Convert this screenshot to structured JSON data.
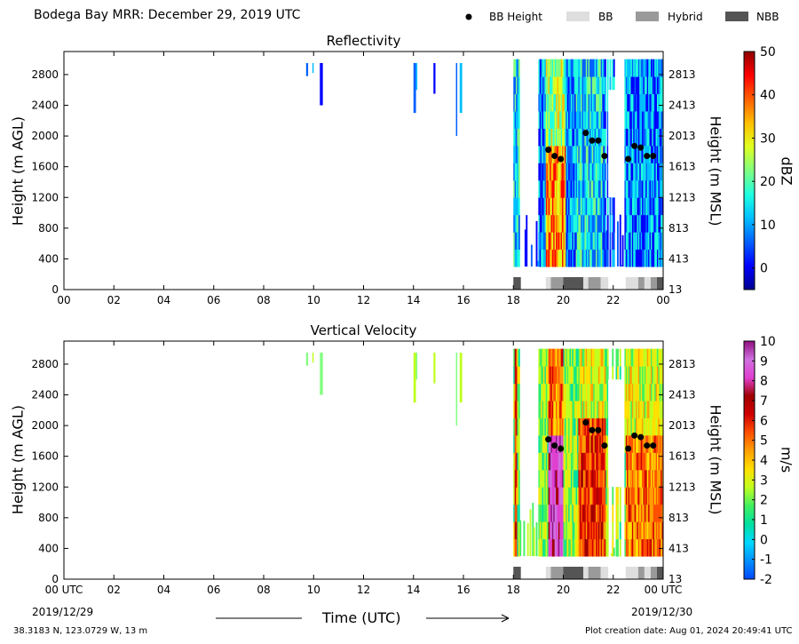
{
  "header": {
    "title": "Bodega Bay MRR:  December 29, 2019 UTC",
    "legend": [
      {
        "label": "BB Height",
        "color": "#000000",
        "kind": "dot"
      },
      {
        "label": "BB",
        "color": "#dedede",
        "kind": "box"
      },
      {
        "label": "Hybrid",
        "color": "#9a9a9a",
        "kind": "box"
      },
      {
        "label": "NBB",
        "color": "#555555",
        "kind": "box"
      }
    ]
  },
  "footer": {
    "location": "38.3183 N, 123.0729 W, 13 m",
    "creation": "Plot creation date: Aug 01, 2024 20:49:41 UTC",
    "xlabel": "Time (UTC)",
    "start_date": "2019/12/29",
    "end_date": "2019/12/30"
  },
  "chart_data": [
    {
      "type": "heatmap",
      "title": "Reflectivity",
      "ylabel": "Height (m AGL)",
      "ylabel_right": "Height (m MSL)",
      "colorbar_label": "dBZ",
      "colorbar_ticks": [
        "0",
        "10",
        "20",
        "30",
        "40",
        "50"
      ],
      "colorbar_range": [
        -5,
        50
      ],
      "x_ticks": [
        "00",
        "02",
        "04",
        "06",
        "08",
        "10",
        "12",
        "14",
        "16",
        "18",
        "20",
        "22",
        "00"
      ],
      "y_ticks": [
        "0",
        "400",
        "800",
        "1200",
        "1600",
        "2000",
        "2400",
        "2800"
      ],
      "y_ticks_right": [
        "13",
        "413",
        "813",
        "1213",
        "1613",
        "2013",
        "2413",
        "2813"
      ],
      "xlim": [
        0,
        24
      ],
      "ylim": [
        0,
        3100
      ],
      "bb_height": [
        {
          "x": 19.4,
          "y": 1820
        },
        {
          "x": 19.65,
          "y": 1740
        },
        {
          "x": 19.9,
          "y": 1700
        },
        {
          "x": 20.9,
          "y": 2040
        },
        {
          "x": 21.15,
          "y": 1940
        },
        {
          "x": 21.4,
          "y": 1940
        },
        {
          "x": 21.65,
          "y": 1740
        },
        {
          "x": 22.6,
          "y": 1700
        },
        {
          "x": 22.85,
          "y": 1870
        },
        {
          "x": 23.1,
          "y": 1850
        },
        {
          "x": 23.35,
          "y": 1740
        },
        {
          "x": 23.6,
          "y": 1740
        }
      ],
      "bb_type": [
        {
          "x0": 18.0,
          "x1": 18.3,
          "kind": "NBB"
        },
        {
          "x0": 19.3,
          "x1": 19.5,
          "kind": "BB"
        },
        {
          "x0": 19.5,
          "x1": 20.0,
          "kind": "Hybrid"
        },
        {
          "x0": 20.0,
          "x1": 20.8,
          "kind": "NBB"
        },
        {
          "x0": 20.8,
          "x1": 21.0,
          "kind": "BB"
        },
        {
          "x0": 21.0,
          "x1": 21.5,
          "kind": "Hybrid"
        },
        {
          "x0": 21.5,
          "x1": 21.8,
          "kind": "BB"
        },
        {
          "x0": 22.5,
          "x1": 23.0,
          "kind": "BB"
        },
        {
          "x0": 23.0,
          "x1": 23.25,
          "kind": "Hybrid"
        },
        {
          "x0": 23.25,
          "x1": 23.5,
          "kind": "BB"
        },
        {
          "x0": 23.5,
          "x1": 23.75,
          "kind": "Hybrid"
        },
        {
          "x0": 23.75,
          "x1": 24.0,
          "kind": "NBB"
        }
      ]
    },
    {
      "type": "heatmap",
      "title": "Vertical Velocity",
      "ylabel": "Height (m AGL)",
      "ylabel_right": "Height (m MSL)",
      "colorbar_label": "m/s",
      "colorbar_ticks": [
        "-2",
        "-1",
        "0",
        "1",
        "2",
        "3",
        "4",
        "5",
        "6",
        "7",
        "8",
        "9",
        "10"
      ],
      "colorbar_range": [
        -2,
        10
      ],
      "x_ticks": [
        "00 UTC",
        "02",
        "04",
        "06",
        "08",
        "10",
        "12",
        "14",
        "16",
        "18",
        "20",
        "22",
        "00 UTC"
      ],
      "y_ticks": [
        "0",
        "400",
        "800",
        "1200",
        "1600",
        "2000",
        "2400",
        "2800"
      ],
      "y_ticks_right": [
        "13",
        "413",
        "813",
        "1213",
        "1613",
        "2013",
        "2413",
        "2813"
      ],
      "xlim": [
        0,
        24
      ],
      "ylim": [
        0,
        3100
      ],
      "bb_height": [
        {
          "x": 19.4,
          "y": 1820
        },
        {
          "x": 19.65,
          "y": 1740
        },
        {
          "x": 19.9,
          "y": 1700
        },
        {
          "x": 20.9,
          "y": 2040
        },
        {
          "x": 21.15,
          "y": 1940
        },
        {
          "x": 21.4,
          "y": 1940
        },
        {
          "x": 21.65,
          "y": 1740
        },
        {
          "x": 22.6,
          "y": 1700
        },
        {
          "x": 22.85,
          "y": 1870
        },
        {
          "x": 23.1,
          "y": 1850
        },
        {
          "x": 23.35,
          "y": 1740
        },
        {
          "x": 23.6,
          "y": 1740
        }
      ],
      "bb_type": [
        {
          "x0": 18.0,
          "x1": 18.3,
          "kind": "NBB"
        },
        {
          "x0": 19.3,
          "x1": 19.5,
          "kind": "BB"
        },
        {
          "x0": 19.5,
          "x1": 20.0,
          "kind": "Hybrid"
        },
        {
          "x0": 20.0,
          "x1": 20.8,
          "kind": "NBB"
        },
        {
          "x0": 20.8,
          "x1": 21.0,
          "kind": "BB"
        },
        {
          "x0": 21.0,
          "x1": 21.5,
          "kind": "Hybrid"
        },
        {
          "x0": 21.5,
          "x1": 21.8,
          "kind": "BB"
        },
        {
          "x0": 22.5,
          "x1": 23.0,
          "kind": "BB"
        },
        {
          "x0": 23.0,
          "x1": 23.25,
          "kind": "Hybrid"
        },
        {
          "x0": 23.25,
          "x1": 23.5,
          "kind": "BB"
        },
        {
          "x0": 23.5,
          "x1": 23.75,
          "kind": "Hybrid"
        },
        {
          "x0": 23.75,
          "x1": 24.0,
          "kind": "NBB"
        }
      ]
    }
  ]
}
